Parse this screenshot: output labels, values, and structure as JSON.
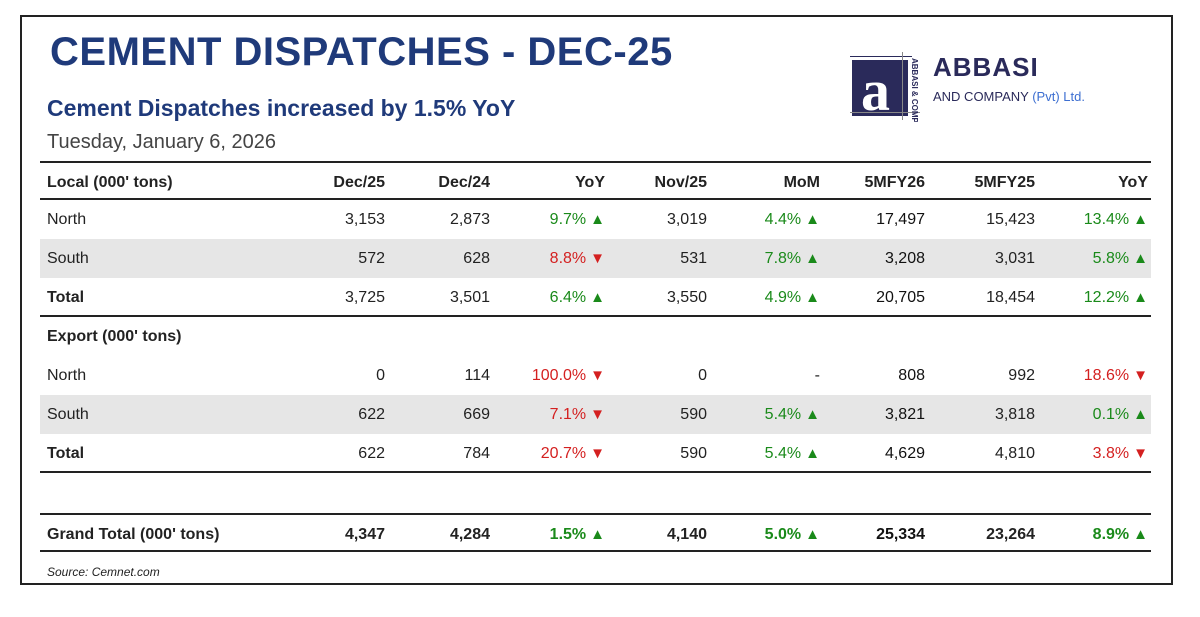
{
  "title": "CEMENT DISPATCHES - DEC-25",
  "subtitle": "Cement Dispatches increased by 1.5% YoY",
  "date": "Tuesday, January 6, 2026",
  "logo": {
    "abbasi": "ABBASI",
    "and_company": "AND COMPANY",
    "pvt": "(Pvt) Ltd.",
    "mark_text": "ABBASI & COMPANY"
  },
  "colors": {
    "title": "#1f3a7a",
    "up": "#1a8a1a",
    "down": "#d42020",
    "shade": "#e6e6e6"
  },
  "header": {
    "label": "Local (000' tons)",
    "cols": [
      "Dec/25",
      "Dec/24",
      "YoY",
      "Nov/25",
      "MoM",
      "5MFY26",
      "5MFY25",
      "YoY"
    ]
  },
  "local": {
    "north": {
      "label": "North",
      "dec25": "3,153",
      "dec24": "2,873",
      "yoy": "9.7%",
      "nov25": "3,019",
      "mom": "4.4%",
      "fy26": "17,497",
      "fy25": "15,423",
      "yoy2": "13.4%"
    },
    "south": {
      "label": "South",
      "dec25": "572",
      "dec24": "628",
      "yoy": "8.8%",
      "nov25": "531",
      "mom": "7.8%",
      "fy26": "3,208",
      "fy25": "3,031",
      "yoy2": "5.8%"
    },
    "total": {
      "label": "Total",
      "dec25": "3,725",
      "dec24": "3,501",
      "yoy": "6.4%",
      "nov25": "3,550",
      "mom": "4.9%",
      "fy26": "20,705",
      "fy25": "18,454",
      "yoy2": "12.2%"
    }
  },
  "export": {
    "label": "Export (000' tons)",
    "north": {
      "label": "North",
      "dec25": "0",
      "dec24": "114",
      "yoy": "100.0%",
      "nov25": "0",
      "mom": "-",
      "fy26": "808",
      "fy25": "992",
      "yoy2": "18.6%"
    },
    "south": {
      "label": "South",
      "dec25": "622",
      "dec24": "669",
      "yoy": "7.1%",
      "nov25": "590",
      "mom": "5.4%",
      "fy26": "3,821",
      "fy25": "3,818",
      "yoy2": "0.1%"
    },
    "total": {
      "label": "Total",
      "dec25": "622",
      "dec24": "784",
      "yoy": "20.7%",
      "nov25": "590",
      "mom": "5.4%",
      "fy26": "4,629",
      "fy25": "4,810",
      "yoy2": "3.8%"
    }
  },
  "grand": {
    "label": "Grand Total (000' tons)",
    "dec25": "4,347",
    "dec24": "4,284",
    "yoy": "1.5%",
    "nov25": "4,140",
    "mom": "5.0%",
    "fy26": "25,334",
    "fy25": "23,264",
    "yoy2": "8.9%"
  },
  "arrows": {
    "up": "▲",
    "down": "▼"
  },
  "source": "Source: Cemnet.com"
}
